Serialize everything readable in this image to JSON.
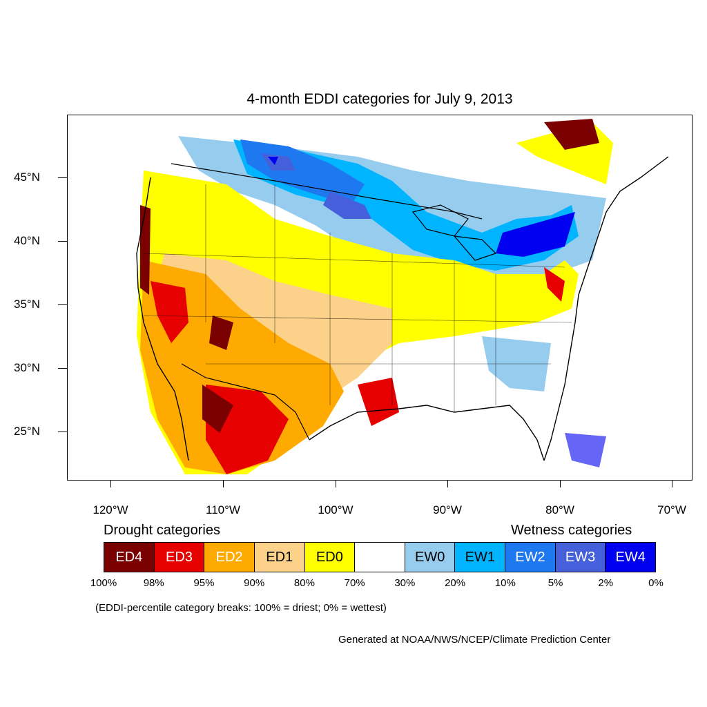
{
  "title": "4-month EDDI categories for July 9, 2013",
  "lat_labels": [
    "45°N",
    "40°N",
    "35°N",
    "30°N",
    "25°N"
  ],
  "lon_labels": [
    "120°W",
    "110°W",
    "100°W",
    "90°W",
    "80°W",
    "70°W"
  ],
  "legend": {
    "drought_heading": "Drought categories",
    "wetness_heading": "Wetness categories",
    "categories": [
      {
        "label": "ED4",
        "color": "#7b0000",
        "text_color": "#ffffff"
      },
      {
        "label": "ED3",
        "color": "#e60000",
        "text_color": "#ffffff"
      },
      {
        "label": "ED2",
        "color": "#ffaa00",
        "text_color": "#ffffff"
      },
      {
        "label": "ED1",
        "color": "#fcd28a",
        "text_color": "#000000"
      },
      {
        "label": "ED0",
        "color": "#ffff00",
        "text_color": "#000000"
      },
      {
        "label": "",
        "color": "#ffffff",
        "text_color": "#000000"
      },
      {
        "label": "EW0",
        "color": "#96ccee",
        "text_color": "#000000"
      },
      {
        "label": "EW1",
        "color": "#00b4ff",
        "text_color": "#000000"
      },
      {
        "label": "EW2",
        "color": "#1e78f0",
        "text_color": "#ffffff"
      },
      {
        "label": "EW3",
        "color": "#4660dc",
        "text_color": "#ffffff"
      },
      {
        "label": "EW4",
        "color": "#0000f0",
        "text_color": "#ffffff"
      }
    ],
    "breaks": [
      "100%",
      "98%",
      "95%",
      "90%",
      "80%",
      "70%",
      "30%",
      "20%",
      "10%",
      "5%",
      "2%",
      "0%"
    ]
  },
  "note": "(EDDI-percentile category breaks: 100% = driest; 0% = wettest)",
  "credit": "Generated at NOAA/NWS/NCEP/Climate Prediction Center"
}
